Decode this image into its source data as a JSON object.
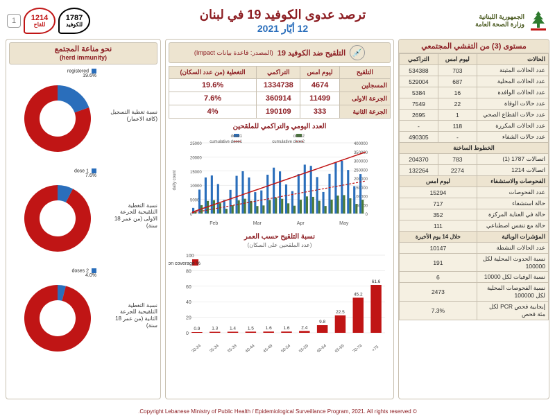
{
  "header": {
    "gov_line1": "الجمهورية اللبنانية",
    "gov_line2": "وزارة الصحة العامة",
    "title": "ترصد عدوى الكوفيد 19 في لبنان",
    "date": "12 أيّار 2021",
    "hotline_covid_num": "1787",
    "hotline_covid_lbl": "للكوفيد",
    "hotline_vax_num": "1214",
    "hotline_vax_lbl": "للقاح",
    "page": "1"
  },
  "stats": {
    "section_title": "مستوى (3) من التفشي المجتمعي",
    "group1": {
      "header_cells": [
        "الحالات",
        "ليوم امس",
        "التراكمي"
      ],
      "rows": [
        {
          "label": "عدد الحالات المثبتة",
          "day": "703",
          "cum": "534388"
        },
        {
          "label": "عدد الحالات المحلية",
          "day": "687",
          "cum": "529004"
        },
        {
          "label": "عدد الحالات الوافدة",
          "day": "16",
          "cum": "5384"
        },
        {
          "label": "عدد حالات الوفاة",
          "day": "22",
          "cum": "7549"
        },
        {
          "label": "عدد حالات القطاع الصحي",
          "day": "1",
          "cum": "2695"
        },
        {
          "label": "عدد الحالات المكررة",
          "day": "118",
          "cum": "-"
        },
        {
          "label": "عدد حالات الشفاء",
          "day": "-",
          "cum": "490305"
        }
      ]
    },
    "group2": {
      "title": "الخطوط الساخنة",
      "rows": [
        {
          "label": "اتصالات 1787 (1)",
          "day": "783",
          "cum": "204370"
        },
        {
          "label": "اتصالات 1214",
          "day": "2274",
          "cum": "132264"
        }
      ]
    },
    "group3": {
      "title": "الفحوصات والاستشفاء",
      "header_day": "ليوم امس",
      "rows": [
        {
          "label": "عدد الفحوصات",
          "val": "15294"
        },
        {
          "label": "حالة استشفاء",
          "val": "717"
        },
        {
          "label": "حالة في العناية المركزة",
          "val": "352"
        },
        {
          "label": "حالة مع تنفس اصطناعي",
          "val": "111"
        }
      ]
    },
    "group4": {
      "title": "المؤشرات الوبائية",
      "header_day": "خلال 14 يوم الأخيرة",
      "rows": [
        {
          "label": "عدد الحالات النشطة",
          "val": "10147"
        },
        {
          "label": "نسبة الحدوث المحلية لكل 100000",
          "val": "191"
        },
        {
          "label": "نسبة الوفيات لكل 10000",
          "val": "6"
        },
        {
          "label": "نسبة الفحوصات المحلية لكل 100000",
          "val": "2473"
        },
        {
          "label": "إيجابية فحص PCR لكل مئة فحص",
          "val": "7.3%"
        }
      ]
    }
  },
  "vax": {
    "title": "التلقيح ضد الكوفيد 19",
    "source": "(المصدر: قاعدة بيانات Impact)",
    "table": {
      "headers": [
        "التلقيح",
        "ليوم امس",
        "التراكمي",
        "التغطية (من عدد السكان)"
      ],
      "rows": [
        {
          "label": "المسجلين",
          "day": "4674",
          "cum": "1334738",
          "cov": "19.6%"
        },
        {
          "label": "الجرعة الاولى",
          "day": "11499",
          "cum": "360914",
          "cov": "7.6%"
        },
        {
          "label": "الجرعة الثانية",
          "day": "333",
          "cum": "190109",
          "cov": "4%"
        }
      ]
    },
    "chart_daily": {
      "title": "العدد اليومي والتراكمي للملقحين",
      "legend": [
        "dose1",
        "dose2",
        "cumulative dose1",
        "cumulative dose2"
      ],
      "x_labels": [
        "Feb",
        "Mar",
        "Apr",
        "May"
      ],
      "y_left_label": "daily count",
      "y_left_max": 25000,
      "y_left_step": 5000,
      "y_right_max": 400000,
      "y_right_step": 50000,
      "colors": {
        "dose1": "#2a6ebb",
        "dose2": "#4a7a3a",
        "cum1": "#c01515",
        "cum2": "#c01515",
        "grid": "#dcdcdc",
        "bg": "#ffffff"
      }
    },
    "chart_age": {
      "title": "نسبة التلقيح حسب العمر",
      "subtitle": "(عدد الملقحين على السكان)",
      "legend": "% vaccination coverage",
      "bar_color": "#c01515",
      "categories": [
        "20-24",
        "25-34",
        "35-39",
        "40-44",
        "45-49",
        "50-54",
        "55-59",
        "60-64",
        "65-69",
        "70-74",
        "75+"
      ],
      "values": [
        0.9,
        1.3,
        1.4,
        1.5,
        1.6,
        1.6,
        2.4,
        9.8,
        22.5,
        45.2,
        61.6
      ],
      "y_max": 100,
      "y_step": 20
    }
  },
  "herd": {
    "title_ar": "نحو مناعة المجتمع",
    "title_en": "(herd immunity)",
    "donuts": [
      {
        "label_ar": "نسبة تغطية التسجيل (كافة الاعمار)",
        "legend": "registered",
        "pct": 19.6,
        "color_fill": "#2a6ebb",
        "color_ring": "#c01515"
      },
      {
        "label_ar": "نسبة التغطية التلقيحية للجرعة الاولى (من عمر 18 سنة)",
        "legend": "1 dose",
        "pct": 7.6,
        "color_fill": "#2a6ebb",
        "color_ring": "#c01515"
      },
      {
        "label_ar": "نسبة التغطية التلقيحية للجرعة الثانية (من عمر 18 سنة)",
        "legend": "2 doses",
        "pct": 4.0,
        "color_fill": "#2a6ebb",
        "color_ring": "#c01515"
      }
    ]
  },
  "footer": "© Copyright Lebanese Ministry of Public Health / Epidemiological Surveillance Program, 2021. All rights reserved."
}
